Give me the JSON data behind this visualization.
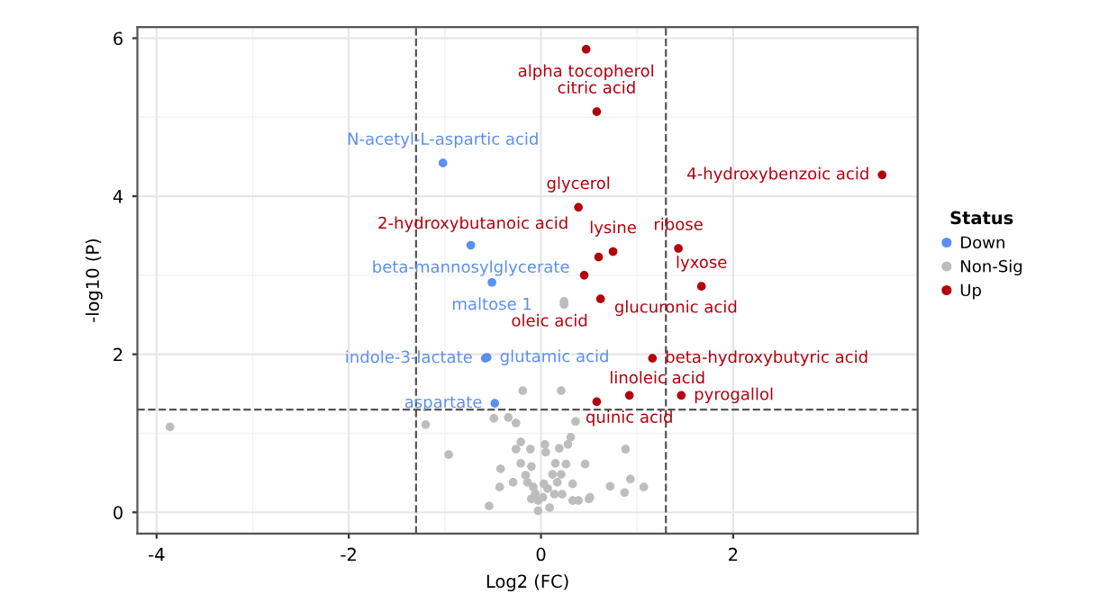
{
  "chart_data": {
    "type": "scatter",
    "xlabel": "Log2 (FC)",
    "ylabel": "-log10 (P)",
    "legend_title": "Status",
    "legend": "right",
    "grid": true,
    "marker": "circle",
    "xlim": [
      -4.2,
      3.92
    ],
    "ylim": [
      -0.27,
      6.14
    ],
    "xticks": [
      -4,
      -2,
      0,
      2
    ],
    "yticks": [
      0,
      2,
      4,
      6
    ],
    "series": [
      {
        "name": "Down",
        "color": "#5b8ff0",
        "x": [
          -1.02,
          -0.73,
          -0.51,
          -0.58,
          -0.56,
          -0.48
        ],
        "values": [
          4.42,
          3.38,
          2.91,
          1.95,
          1.96,
          1.38
        ]
      },
      {
        "name": "Non-Sig",
        "color": "#bdbdbd",
        "x": [
          -3.86,
          -1.2,
          -0.96,
          -0.54,
          -0.49,
          -0.34,
          -0.26,
          -0.19,
          0.24,
          0.24,
          0.21,
          -0.42,
          -0.43,
          -0.29,
          -0.21,
          -0.26,
          -0.11,
          -0.21,
          -0.1,
          -0.16,
          -0.14,
          -0.08,
          -0.06,
          -0.1,
          -0.03,
          -0.03,
          0.02,
          0.07,
          0.03,
          0.09,
          0.14,
          0.15,
          0.26,
          0.21,
          0.17,
          0.33,
          0.22,
          0.33,
          0.39,
          0.51,
          0.46,
          0.31,
          0.28,
          0.19,
          0.04,
          0.05,
          0.12,
          0.36,
          0.88,
          0.93,
          1.07,
          0.87,
          0.72,
          0.5
        ],
        "values": [
          1.08,
          1.11,
          0.73,
          0.08,
          1.19,
          1.2,
          1.13,
          1.54,
          2.67,
          2.63,
          1.54,
          0.55,
          0.32,
          0.38,
          0.89,
          0.8,
          0.8,
          0.62,
          0.58,
          0.47,
          0.38,
          0.32,
          0.24,
          0.17,
          0.15,
          0.02,
          0.19,
          0.3,
          0.36,
          0.06,
          0.23,
          0.62,
          0.61,
          0.48,
          0.38,
          0.36,
          0.23,
          0.15,
          0.15,
          0.19,
          0.61,
          0.95,
          0.86,
          0.81,
          0.86,
          0.76,
          0.48,
          1.15,
          0.8,
          0.42,
          0.32,
          0.25,
          0.33,
          0.17
        ]
      },
      {
        "name": "Up",
        "color": "#b2000f",
        "x": [
          0.47,
          0.58,
          3.55,
          0.39,
          0.75,
          0.6,
          1.43,
          0.45,
          1.67,
          0.62,
          1.16,
          0.92,
          1.46,
          0.58
        ],
        "values": [
          5.86,
          5.07,
          4.27,
          3.86,
          3.3,
          3.23,
          3.34,
          3.0,
          2.86,
          2.7,
          1.95,
          1.48,
          1.48,
          1.4
        ]
      }
    ],
    "ref_lines": [
      {
        "axis": "x",
        "value": -1.3,
        "line_style": "dashed",
        "color": "#555555"
      },
      {
        "axis": "x",
        "value": 1.3,
        "line_style": "dashed",
        "color": "#555555"
      },
      {
        "axis": "y",
        "value": 1.3,
        "line_style": "dashed",
        "color": "#555555"
      }
    ],
    "annotations": [
      {
        "text": "alpha tocopherol",
        "x": 0.47,
        "y": 5.86
      },
      {
        "text": "citric acid",
        "x": 0.58,
        "y": 5.07
      },
      {
        "text": "4-hydroxybenzoic acid",
        "x": 3.55,
        "y": 4.27
      },
      {
        "text": "glycerol",
        "x": 0.39,
        "y": 3.86
      },
      {
        "text": "lysine",
        "x": 0.75,
        "y": 3.3
      },
      {
        "text": "2-hydroxybutanoic acid",
        "x": 0.6,
        "y": 3.23
      },
      {
        "text": "ribose",
        "x": 1.43,
        "y": 3.34
      },
      {
        "text": "glucuronic acid",
        "x": 0.45,
        "y": 3.0
      },
      {
        "text": "lyxose",
        "x": 1.67,
        "y": 2.86
      },
      {
        "text": "oleic acid",
        "x": 0.62,
        "y": 2.7
      },
      {
        "text": "beta-hydroxybutyric acid",
        "x": 1.16,
        "y": 1.95
      },
      {
        "text": "quinic acid",
        "x": 0.92,
        "y": 1.48
      },
      {
        "text": "pyrogallol",
        "x": 1.46,
        "y": 1.48
      },
      {
        "text": "linoleic acid",
        "x": 0.58,
        "y": 1.4
      },
      {
        "text": "N-acetyl-L-aspartic acid",
        "x": -1.02,
        "y": 4.42
      },
      {
        "text": "beta-mannosylglycerate",
        "x": -0.73,
        "y": 3.38
      },
      {
        "text": "maltose 1",
        "x": -0.51,
        "y": 2.91
      },
      {
        "text": "indole-3-lactate",
        "x": -0.58,
        "y": 1.95
      },
      {
        "text": "glutamic acid",
        "x": -0.56,
        "y": 1.96
      },
      {
        "text": "aspartate",
        "x": -0.48,
        "y": 1.38
      }
    ]
  }
}
